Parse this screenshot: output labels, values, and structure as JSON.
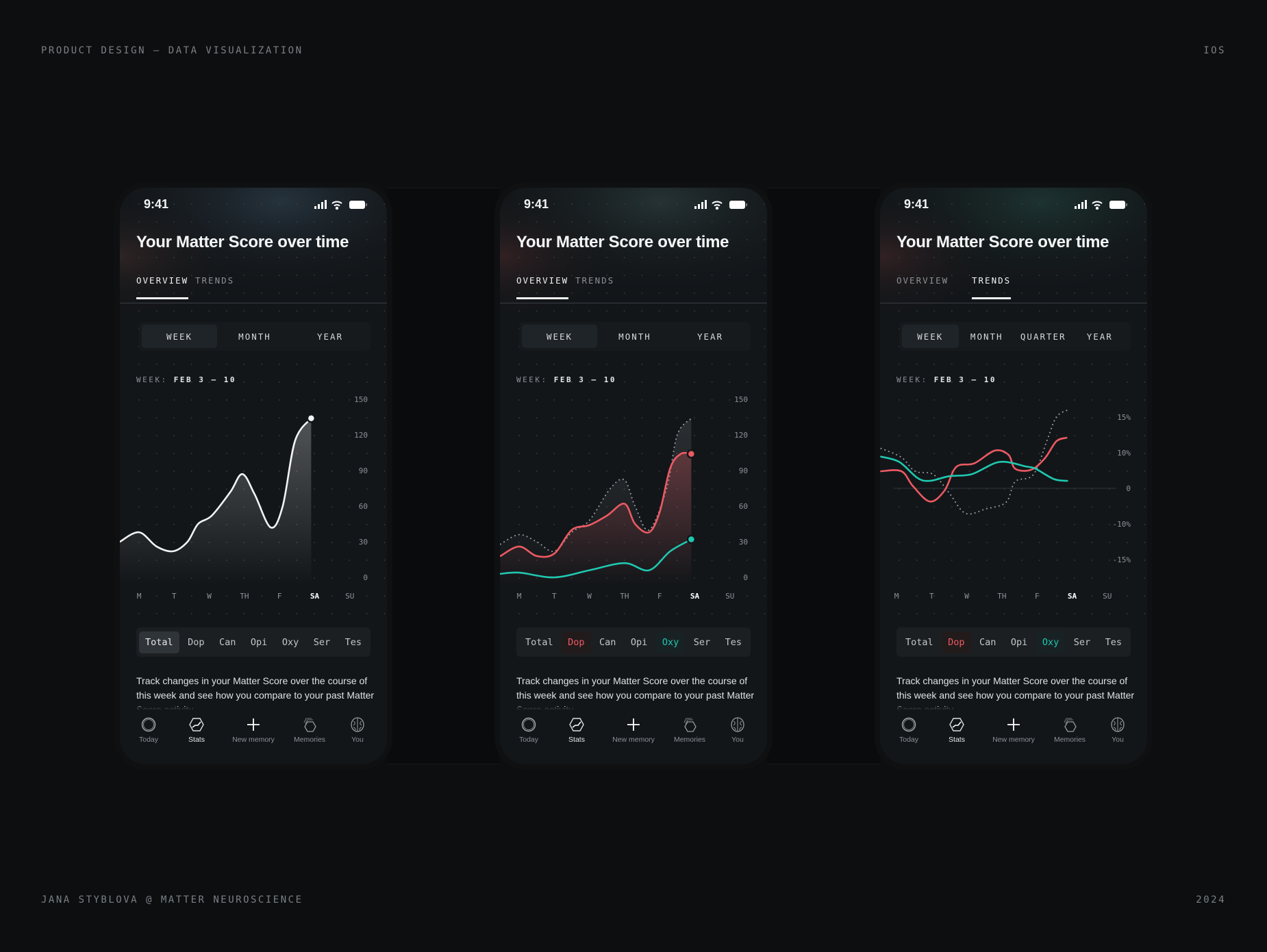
{
  "header": {
    "left": "PRODUCT DESIGN — DATA VISUALIZATION",
    "right": "IOS"
  },
  "footer": {
    "left": "JANA STYBLOVA @ MATTER NEUROSCIENCE",
    "right": "2024"
  },
  "colors": {
    "background": "#0c0e10",
    "phone": "#131619",
    "dopamine": "#ec5a63",
    "oxytocin": "#1fc8b0",
    "total": "#f2f3f4"
  },
  "nav": [
    {
      "label": "Today",
      "icon": "ring-icon"
    },
    {
      "label": "Stats",
      "icon": "stats-hexagon-icon"
    },
    {
      "label": "New memory",
      "icon": "plus-icon"
    },
    {
      "label": "Memories",
      "icon": "stacked-hexagons-icon"
    },
    {
      "label": "You",
      "icon": "brain-icon"
    }
  ],
  "phones": [
    {
      "time": "9:41",
      "title": "Your Matter Score over time",
      "tabs": [
        "OVERVIEW",
        "TRENDS"
      ],
      "active_tab": 0,
      "periods": [
        "WEEK",
        "MONTH",
        "YEAR"
      ],
      "active_period": 0,
      "week_label": "WEEK:",
      "week_range": "FEB 3 – 10",
      "chips": [
        {
          "label": "Total",
          "state": "active"
        },
        {
          "label": "Dop"
        },
        {
          "label": "Can"
        },
        {
          "label": "Opi"
        },
        {
          "label": "Oxy"
        },
        {
          "label": "Ser"
        },
        {
          "label": "Tes"
        }
      ],
      "description": "Track changes in your Matter Score over the course of this week and see how you compare to your past Matter Score activity.",
      "active_nav": 1,
      "chart_data": {
        "type": "line",
        "categories": [
          "M",
          "T",
          "W",
          "TH",
          "F",
          "SA",
          "SU"
        ],
        "highlight_category": "SA",
        "y_ticks": [
          "150",
          "120",
          "90",
          "60",
          "30",
          "0"
        ],
        "ylim": [
          0,
          150
        ],
        "series": [
          {
            "key": "total",
            "color": "#f2f3f4",
            "style": "solid",
            "fill": true,
            "end_marker": true,
            "points": [
              [
                -0.55,
                30
              ],
              [
                0,
                38
              ],
              [
                0.5,
                26
              ],
              [
                0.97,
                22
              ],
              [
                1.38,
                30
              ],
              [
                1.68,
                45
              ],
              [
                2.07,
                52
              ],
              [
                2.6,
                72
              ],
              [
                2.94,
                87
              ],
              [
                3.29,
                70
              ],
              [
                3.75,
                42
              ],
              [
                4.09,
                60
              ],
              [
                4.44,
                115
              ],
              [
                4.9,
                134
              ]
            ]
          }
        ]
      }
    },
    {
      "time": "9:41",
      "title": "Your Matter Score over time",
      "tabs": [
        "OVERVIEW",
        "TRENDS"
      ],
      "active_tab": 0,
      "periods": [
        "WEEK",
        "MONTH",
        "YEAR"
      ],
      "active_period": 0,
      "week_label": "WEEK:",
      "week_range": "FEB 3 – 10",
      "chips": [
        {
          "label": "Total"
        },
        {
          "label": "Dop",
          "state": "red"
        },
        {
          "label": "Can"
        },
        {
          "label": "Opi"
        },
        {
          "label": "Oxy",
          "state": "teal"
        },
        {
          "label": "Ser"
        },
        {
          "label": "Tes"
        }
      ],
      "description": "Track changes in your Matter Score over the course of this week and see how you compare to your past Matter Score activity.",
      "active_nav": 1,
      "chart_data": {
        "type": "line",
        "categories": [
          "M",
          "T",
          "W",
          "TH",
          "F",
          "SA",
          "SU"
        ],
        "highlight_category": "SA",
        "y_ticks": [
          "150",
          "120",
          "90",
          "60",
          "30",
          "0"
        ],
        "ylim": [
          0,
          150
        ],
        "series": [
          {
            "key": "total",
            "color": "#9a9ea3",
            "style": "dotted",
            "fill": true,
            "points": [
              [
                -0.53,
                28
              ],
              [
                0,
                36
              ],
              [
                0.5,
                30
              ],
              [
                1,
                22
              ],
              [
                1.5,
                38
              ],
              [
                2,
                48
              ],
              [
                2.6,
                75
              ],
              [
                3,
                82
              ],
              [
                3.3,
                60
              ],
              [
                3.7,
                40
              ],
              [
                4.2,
                75
              ],
              [
                4.5,
                120
              ],
              [
                4.9,
                134
              ]
            ]
          },
          {
            "key": "dop",
            "color": "#ec5a63",
            "style": "solid",
            "fill": true,
            "end_marker": true,
            "points": [
              [
                -0.53,
                18
              ],
              [
                0,
                26
              ],
              [
                0.5,
                18
              ],
              [
                1,
                20
              ],
              [
                1.5,
                40
              ],
              [
                2,
                44
              ],
              [
                2.5,
                52
              ],
              [
                3,
                62
              ],
              [
                3.3,
                45
              ],
              [
                3.7,
                38
              ],
              [
                4,
                55
              ],
              [
                4.3,
                92
              ],
              [
                4.6,
                104
              ],
              [
                4.9,
                104
              ]
            ]
          },
          {
            "key": "oxy",
            "color": "#1fc8b0",
            "style": "solid",
            "end_marker": true,
            "points": [
              [
                -0.53,
                3
              ],
              [
                0,
                4
              ],
              [
                1,
                0
              ],
              [
                2,
                6
              ],
              [
                3,
                12
              ],
              [
                3.7,
                6
              ],
              [
                4.3,
                22
              ],
              [
                4.9,
                32
              ]
            ]
          }
        ]
      }
    },
    {
      "time": "9:41",
      "title": "Your Matter Score over time",
      "tabs": [
        "OVERVIEW",
        "TRENDS"
      ],
      "active_tab": 1,
      "periods": [
        "WEEK",
        "MONTH",
        "QUARTER",
        "YEAR"
      ],
      "active_period": 0,
      "week_label": "WEEK:",
      "week_range": "FEB 3 – 10",
      "chips": [
        {
          "label": "Total"
        },
        {
          "label": "Dop",
          "state": "red"
        },
        {
          "label": "Can"
        },
        {
          "label": "Opi"
        },
        {
          "label": "Oxy",
          "state": "teal"
        },
        {
          "label": "Ser"
        },
        {
          "label": "Tes"
        }
      ],
      "description": "Track changes in your Matter Score over the course of this week and see how you compare to your past Matter Score activity.",
      "active_nav": 1,
      "chart_data": {
        "type": "line",
        "categories": [
          "M",
          "T",
          "W",
          "TH",
          "F",
          "SA",
          "SU"
        ],
        "highlight_category": "SA",
        "y_ticks": [
          "15%",
          "10%",
          "0",
          "-10%",
          "-15%"
        ],
        "y_tick_values": [
          15,
          10,
          0,
          -10,
          -15
        ],
        "zero_line": true,
        "series": [
          {
            "key": "total",
            "color": "#9a9ea3",
            "style": "dotted",
            "points": [
              [
                -0.44,
                10.6
              ],
              [
                0.14,
                8.7
              ],
              [
                0.53,
                4.8
              ],
              [
                1.05,
                3.9
              ],
              [
                1.5,
                -1.3
              ],
              [
                1.96,
                -7
              ],
              [
                2.54,
                -5.8
              ],
              [
                3.12,
                -3.9
              ],
              [
                3.38,
                1.9
              ],
              [
                3.9,
                3.9
              ],
              [
                4.29,
                11.8
              ],
              [
                4.55,
                15
              ],
              [
                4.87,
                16
              ]
            ]
          },
          {
            "key": "dop",
            "color": "#ec5a63",
            "style": "solid",
            "points": [
              [
                -0.44,
                4.8
              ],
              [
                0.14,
                4.8
              ],
              [
                0.47,
                0.6
              ],
              [
                0.95,
                -3.7
              ],
              [
                1.37,
                -0.6
              ],
              [
                1.7,
                6
              ],
              [
                2.21,
                7
              ],
              [
                2.8,
                10.3
              ],
              [
                3.19,
                9.4
              ],
              [
                3.38,
                5.5
              ],
              [
                3.83,
                5.2
              ],
              [
                4.22,
                8.4
              ],
              [
                4.55,
                11.6
              ],
              [
                4.84,
                12.1
              ]
            ]
          },
          {
            "key": "oxy",
            "color": "#1fc8b0",
            "style": "solid",
            "points": [
              [
                -0.44,
                8.9
              ],
              [
                0.08,
                7.4
              ],
              [
                0.6,
                2.9
              ],
              [
                0.95,
                2.1
              ],
              [
                1.5,
                3.4
              ],
              [
                2.15,
                4
              ],
              [
                2.93,
                7.4
              ],
              [
                3.7,
                6.1
              ],
              [
                3.96,
                5.5
              ],
              [
                4.48,
                2.6
              ],
              [
                4.86,
                2.1
              ]
            ]
          }
        ]
      }
    }
  ]
}
